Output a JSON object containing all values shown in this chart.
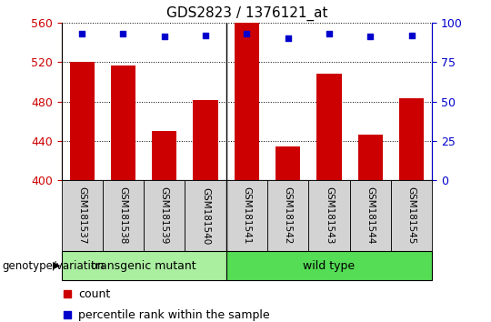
{
  "title": "GDS2823 / 1376121_at",
  "samples": [
    "GSM181537",
    "GSM181538",
    "GSM181539",
    "GSM181540",
    "GSM181541",
    "GSM181542",
    "GSM181543",
    "GSM181544",
    "GSM181545"
  ],
  "counts": [
    520,
    516,
    450,
    481,
    560,
    434,
    508,
    446,
    483
  ],
  "percentile_ranks": [
    93,
    93,
    91,
    92,
    93,
    90,
    93,
    91,
    92
  ],
  "ylim_left": [
    400,
    560
  ],
  "yticks_left": [
    400,
    440,
    480,
    520,
    560
  ],
  "ylim_right": [
    0,
    100
  ],
  "yticks_right": [
    0,
    25,
    50,
    75,
    100
  ],
  "bar_color": "#cc0000",
  "dot_color": "#0000cc",
  "groups": [
    {
      "label": "transgenic mutant",
      "start": 0,
      "end": 4,
      "color": "#aaeea0"
    },
    {
      "label": "wild type",
      "start": 4,
      "end": 9,
      "color": "#55dd55"
    }
  ],
  "group_label": "genotype/variation",
  "background_color": "#ffffff",
  "grid_color": "#000000",
  "title_fontsize": 11,
  "tick_fontsize": 9,
  "label_fontsize": 9,
  "legend_fontsize": 9
}
